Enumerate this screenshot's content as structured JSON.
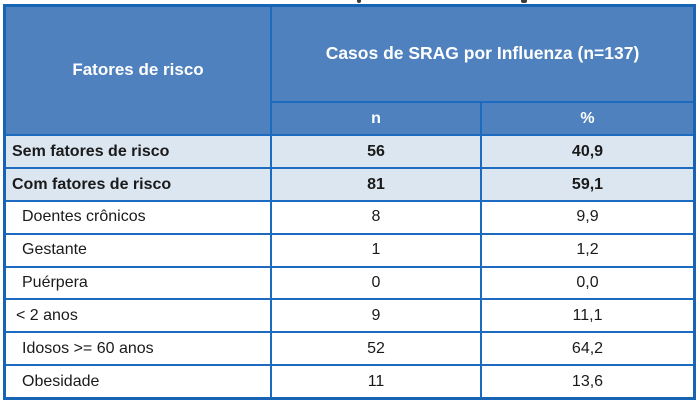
{
  "table": {
    "header": {
      "col1": "Fatores de risco",
      "group": "Casos de SRAG por Influenza (n=137)",
      "n": "n",
      "pct": "%"
    },
    "rows": [
      {
        "label": "Sem fatores de risco",
        "n": "56",
        "pct": "40,9"
      },
      {
        "label": "Com fatores de risco",
        "n": "81",
        "pct": "59,1"
      },
      {
        "label": "Doentes crônicos",
        "n": "8",
        "pct": "9,9"
      },
      {
        "label": "Gestante",
        "n": "1",
        "pct": "1,2"
      },
      {
        "label": "Puérpera",
        "n": "0",
        "pct": "0,0"
      },
      {
        "label": "< 2 anos",
        "n": "9",
        "pct": "11,1"
      },
      {
        "label": "Idosos >= 60 anos",
        "n": "52",
        "pct": "64,2"
      },
      {
        "label": "Obesidade",
        "n": "11",
        "pct": "13,6"
      }
    ]
  },
  "colors": {
    "header_bg": "#4E81BD",
    "border": "#1C6BC0",
    "outer_border": "#1864B4",
    "highlight_row_bg": "#DCE6F1",
    "header_text": "#FFFFFF",
    "body_text": "#1A1A1A"
  },
  "chart_data": {
    "type": "table",
    "title": "",
    "group_header": "Casos de SRAG por Influenza (n=137)",
    "columns": [
      "Fatores de risco",
      "n",
      "%"
    ],
    "rows": [
      [
        "Sem fatores de risco",
        56,
        40.9
      ],
      [
        "Com fatores de risco",
        81,
        59.1
      ],
      [
        "Doentes crônicos",
        8,
        9.9
      ],
      [
        "Gestante",
        1,
        1.2
      ],
      [
        "Puérpera",
        0,
        0.0
      ],
      [
        "< 2 anos",
        9,
        11.1
      ],
      [
        "Idosos >= 60 anos",
        52,
        64.2
      ],
      [
        "Obesidade",
        11,
        13.6
      ]
    ]
  }
}
